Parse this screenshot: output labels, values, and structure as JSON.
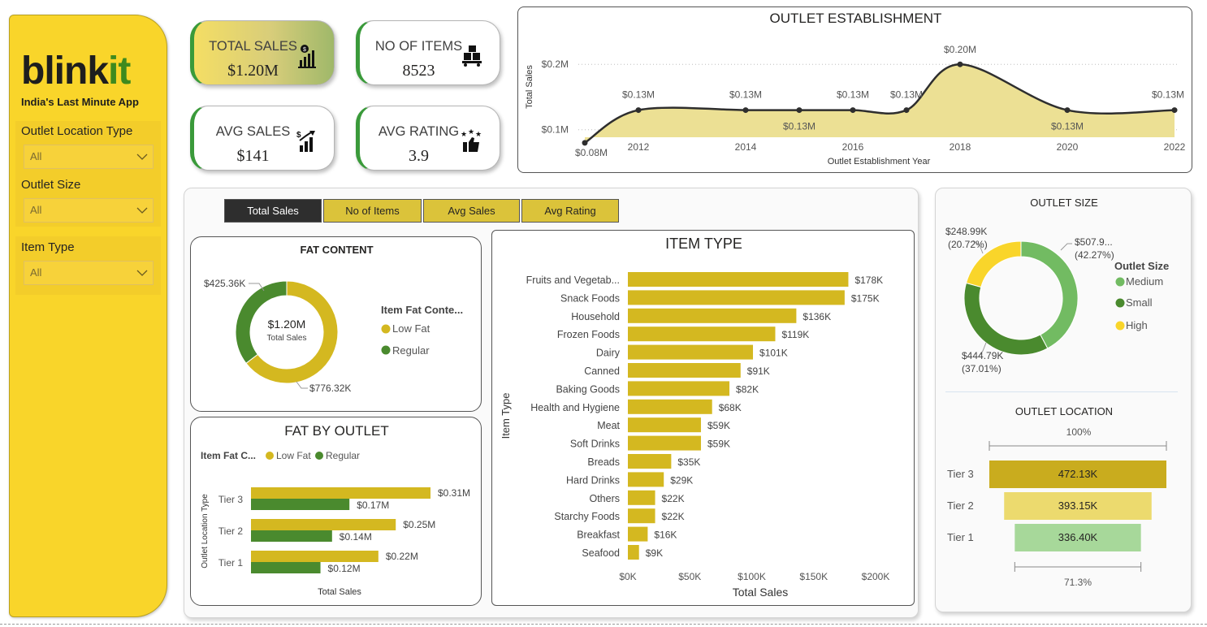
{
  "sidebar": {
    "logo_main": "blink",
    "logo_accent": "it",
    "tagline": "India's Last Minute App",
    "slicers": [
      {
        "title": "Outlet Location Type",
        "value": "All"
      },
      {
        "title": "Outlet Size",
        "value": "All"
      },
      {
        "title": "Item Type",
        "value": "All"
      }
    ]
  },
  "kpis": [
    {
      "label": "TOTAL SALES",
      "value": "$1.20M",
      "icon": "money-chart-icon"
    },
    {
      "label": "NO OF ITEMS",
      "value": "8523",
      "icon": "boxes-icon"
    },
    {
      "label": "AVG SALES",
      "value": "$141",
      "icon": "growth-chart-icon"
    },
    {
      "label": "AVG RATING",
      "value": "3.9",
      "icon": "thumbs-up-stars-icon"
    }
  ],
  "tabs": [
    "Total Sales",
    "No of Items",
    "Avg Sales",
    "Avg Rating"
  ],
  "colors": {
    "gold": "#d4b820",
    "dark_green": "#4a8a2e",
    "medium_green": "#72bb62",
    "yellow": "#f9d52a",
    "area": "#ece094"
  },
  "establishment": {
    "title": "OUTLET ESTABLISHMENT",
    "xlabel": "Outlet Establishment Year",
    "ylabel": "Total Sales",
    "yticks": [
      "$0.1M",
      "$0.2M"
    ],
    "xticks": [
      "2012",
      "2014",
      "2016",
      "2018",
      "2020",
      "2022"
    ],
    "labels": [
      "$0.08M",
      "$0.13M",
      "$0.13M",
      "$0.13M",
      "$0.13M",
      "$0.13M",
      "$0.20M",
      "$0.13M",
      "$0.13M"
    ]
  },
  "fat_content": {
    "title": "FAT CONTENT",
    "center_value": "$1.20M",
    "center_label": "Total Sales",
    "legend_title": "Item Fat Conte...",
    "legend": [
      "Low Fat",
      "Regular"
    ],
    "labels": [
      "$425.36K",
      "$776.32K"
    ]
  },
  "fat_by_outlet": {
    "title": "FAT BY OUTLET",
    "legend_title": "Item Fat C...",
    "legend": [
      "Low Fat",
      "Regular"
    ],
    "ylabel": "Outlet Location Type",
    "xlabel": "Total Sales",
    "tiers": [
      {
        "name": "Tier 3",
        "low": "$0.31M",
        "reg": "$0.17M"
      },
      {
        "name": "Tier 2",
        "low": "$0.25M",
        "reg": "$0.14M"
      },
      {
        "name": "Tier 1",
        "low": "$0.22M",
        "reg": "$0.12M"
      }
    ]
  },
  "item_type": {
    "title": "ITEM TYPE",
    "ylabel": "Item Type",
    "xlabel": "Total Sales",
    "xticks": [
      "$0K",
      "$50K",
      "$100K",
      "$150K",
      "$200K"
    ],
    "items": [
      {
        "name": "Fruits and Vegetab...",
        "label": "$178K"
      },
      {
        "name": "Snack Foods",
        "label": "$175K"
      },
      {
        "name": "Household",
        "label": "$136K"
      },
      {
        "name": "Frozen Foods",
        "label": "$119K"
      },
      {
        "name": "Dairy",
        "label": "$101K"
      },
      {
        "name": "Canned",
        "label": "$91K"
      },
      {
        "name": "Baking Goods",
        "label": "$82K"
      },
      {
        "name": "Health and Hygiene",
        "label": "$68K"
      },
      {
        "name": "Meat",
        "label": "$59K"
      },
      {
        "name": "Soft Drinks",
        "label": "$59K"
      },
      {
        "name": "Breads",
        "label": "$35K"
      },
      {
        "name": "Hard Drinks",
        "label": "$29K"
      },
      {
        "name": "Others",
        "label": "$22K"
      },
      {
        "name": "Starchy Foods",
        "label": "$22K"
      },
      {
        "name": "Breakfast",
        "label": "$16K"
      },
      {
        "name": "Seafood",
        "label": "$9K"
      }
    ]
  },
  "outlet_size": {
    "title": "OUTLET SIZE",
    "legend_title": "Outlet Size",
    "legend": [
      "Medium",
      "Small",
      "High"
    ],
    "labels": [
      {
        "value": "$507.9...",
        "pct": "(42.27%)"
      },
      {
        "value": "$444.79K",
        "pct": "(37.01%)"
      },
      {
        "value": "$248.99K",
        "pct": "(20.72%)"
      }
    ]
  },
  "outlet_location": {
    "title": "OUTLET LOCATION",
    "top_pct": "100%",
    "bottom_pct": "71.3%",
    "tiers": [
      {
        "name": "Tier 3",
        "label": "472.13K"
      },
      {
        "name": "Tier 2",
        "label": "393.15K"
      },
      {
        "name": "Tier 1",
        "label": "336.40K"
      }
    ]
  },
  "chart_data": [
    {
      "type": "area",
      "title": "OUTLET ESTABLISHMENT",
      "xlabel": "Outlet Establishment Year",
      "ylabel": "Total Sales",
      "x": [
        2011,
        2012,
        2014,
        2015,
        2016,
        2017,
        2018,
        2020,
        2022
      ],
      "values": [
        0.08,
        0.13,
        0.13,
        0.13,
        0.13,
        0.13,
        0.2,
        0.13,
        0.13
      ],
      "ylim": [
        0.05,
        0.24
      ],
      "grid": true
    },
    {
      "type": "pie",
      "title": "FAT CONTENT",
      "categories": [
        "Low Fat",
        "Regular"
      ],
      "values": [
        776.32,
        425.36
      ]
    },
    {
      "type": "bar",
      "title": "FAT BY OUTLET",
      "xlabel": "Total Sales",
      "ylabel": "Outlet Location Type",
      "categories": [
        "Tier 3",
        "Tier 2",
        "Tier 1"
      ],
      "series": [
        {
          "name": "Low Fat",
          "values": [
            0.31,
            0.25,
            0.22
          ]
        },
        {
          "name": "Regular",
          "values": [
            0.17,
            0.14,
            0.12
          ]
        }
      ],
      "xlim": [
        0,
        0.4
      ]
    },
    {
      "type": "bar",
      "title": "ITEM TYPE",
      "xlabel": "Total Sales",
      "ylabel": "Item Type",
      "categories": [
        "Fruits and Vegetab...",
        "Snack Foods",
        "Household",
        "Frozen Foods",
        "Dairy",
        "Canned",
        "Baking Goods",
        "Health and Hygiene",
        "Meat",
        "Soft Drinks",
        "Breads",
        "Hard Drinks",
        "Others",
        "Starchy Foods",
        "Breakfast",
        "Seafood"
      ],
      "values": [
        178,
        175,
        136,
        119,
        101,
        91,
        82,
        68,
        59,
        59,
        35,
        29,
        22,
        22,
        16,
        9
      ],
      "xlim": [
        0,
        200
      ]
    },
    {
      "type": "pie",
      "title": "OUTLET SIZE",
      "categories": [
        "Medium",
        "Small",
        "High"
      ],
      "values": [
        507.9,
        444.79,
        248.99
      ]
    },
    {
      "type": "bar",
      "title": "OUTLET LOCATION",
      "categories": [
        "Tier 3",
        "Tier 2",
        "Tier 1"
      ],
      "values": [
        472.13,
        393.15,
        336.4
      ]
    }
  ]
}
